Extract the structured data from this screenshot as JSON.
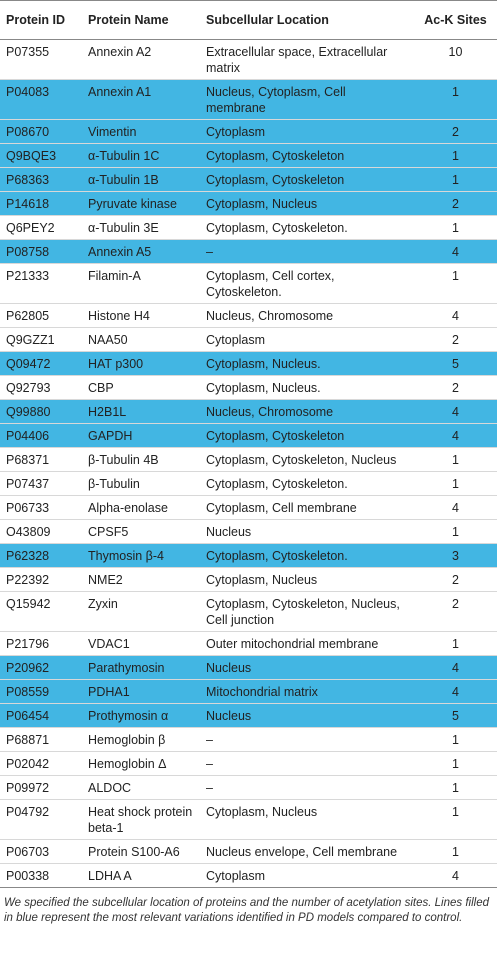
{
  "table": {
    "columns": [
      "Protein ID",
      "Protein Name",
      "Subcellular Location",
      "Ac-K Sites"
    ],
    "highlight_color": "#42b6e3",
    "rows": [
      {
        "cells": [
          "P07355",
          "Annexin A2",
          "Extracellular space, Extracellular matrix",
          10
        ],
        "highlighted": false
      },
      {
        "cells": [
          "P04083",
          "Annexin A1",
          "Nucleus, Cytoplasm, Cell membrane",
          1
        ],
        "highlighted": true
      },
      {
        "cells": [
          "P08670",
          "Vimentin",
          "Cytoplasm",
          2
        ],
        "highlighted": true
      },
      {
        "cells": [
          "Q9BQE3",
          "α-Tubulin 1C",
          "Cytoplasm, Cytoskeleton",
          1
        ],
        "highlighted": true
      },
      {
        "cells": [
          "P68363",
          "α-Tubulin 1B",
          "Cytoplasm, Cytoskeleton",
          1
        ],
        "highlighted": true
      },
      {
        "cells": [
          "P14618",
          "Pyruvate kinase",
          "Cytoplasm, Nucleus",
          2
        ],
        "highlighted": true
      },
      {
        "cells": [
          "Q6PEY2",
          "α-Tubulin 3E",
          "Cytoplasm, Cytoskeleton.",
          1
        ],
        "highlighted": false
      },
      {
        "cells": [
          "P08758",
          "Annexin A5",
          "–",
          4
        ],
        "highlighted": true
      },
      {
        "cells": [
          "P21333",
          "Filamin-A",
          "Cytoplasm, Cell cortex, Cytoskeleton.",
          1
        ],
        "highlighted": false
      },
      {
        "cells": [
          "P62805",
          "Histone H4",
          "Nucleus, Chromosome",
          4
        ],
        "highlighted": false
      },
      {
        "cells": [
          "Q9GZZ1",
          "NAA50",
          "Cytoplasm",
          2
        ],
        "highlighted": false
      },
      {
        "cells": [
          "Q09472",
          "HAT p300",
          "Cytoplasm, Nucleus.",
          5
        ],
        "highlighted": true
      },
      {
        "cells": [
          "Q92793",
          "CBP",
          "Cytoplasm, Nucleus.",
          2
        ],
        "highlighted": false
      },
      {
        "cells": [
          "Q99880",
          "H2B1L",
          "Nucleus, Chromosome",
          4
        ],
        "highlighted": true
      },
      {
        "cells": [
          "P04406",
          "GAPDH",
          "Cytoplasm, Cytoskeleton",
          4
        ],
        "highlighted": true
      },
      {
        "cells": [
          "P68371",
          "β-Tubulin 4B",
          "Cytoplasm, Cytoskeleton, Nucleus",
          1
        ],
        "highlighted": false
      },
      {
        "cells": [
          "P07437",
          "β-Tubulin",
          "Cytoplasm, Cytoskeleton.",
          1
        ],
        "highlighted": false
      },
      {
        "cells": [
          "P06733",
          "Alpha-enolase",
          "Cytoplasm, Cell membrane",
          4
        ],
        "highlighted": false
      },
      {
        "cells": [
          "O43809",
          "CPSF5",
          "Nucleus",
          1
        ],
        "highlighted": false
      },
      {
        "cells": [
          "P62328",
          "Thymosin β-4",
          "Cytoplasm, Cytoskeleton.",
          3
        ],
        "highlighted": true
      },
      {
        "cells": [
          "P22392",
          "NME2",
          "Cytoplasm, Nucleus",
          2
        ],
        "highlighted": false
      },
      {
        "cells": [
          "Q15942",
          "Zyxin",
          "Cytoplasm, Cytoskeleton, Nucleus, Cell junction",
          2
        ],
        "highlighted": false
      },
      {
        "cells": [
          "P21796",
          "VDAC1",
          "Outer mitochondrial membrane",
          1
        ],
        "highlighted": false
      },
      {
        "cells": [
          "P20962",
          "Parathymosin",
          "Nucleus",
          4
        ],
        "highlighted": true
      },
      {
        "cells": [
          "P08559",
          "PDHA1",
          "Mitochondrial matrix",
          4
        ],
        "highlighted": true
      },
      {
        "cells": [
          "P06454",
          "Prothymosin α",
          "Nucleus",
          5
        ],
        "highlighted": true
      },
      {
        "cells": [
          "P68871",
          "Hemoglobin β",
          "–",
          1
        ],
        "highlighted": false
      },
      {
        "cells": [
          "P02042",
          "Hemoglobin Δ",
          "–",
          1
        ],
        "highlighted": false
      },
      {
        "cells": [
          "P09972",
          "ALDOC",
          "–",
          1
        ],
        "highlighted": false
      },
      {
        "cells": [
          "P04792",
          "Heat shock protein beta-1",
          "Cytoplasm, Nucleus",
          1
        ],
        "highlighted": false
      },
      {
        "cells": [
          "P06703",
          "Protein S100-A6",
          "Nucleus envelope, Cell membrane",
          1
        ],
        "highlighted": false
      },
      {
        "cells": [
          "P00338",
          "LDHA A",
          "Cytoplasm",
          4
        ],
        "highlighted": false
      }
    ]
  },
  "caption": "We specified the subcellular location of proteins and the number of acetylation sites. Lines filled in blue represent the most relevant variations identified in PD models compared to control."
}
